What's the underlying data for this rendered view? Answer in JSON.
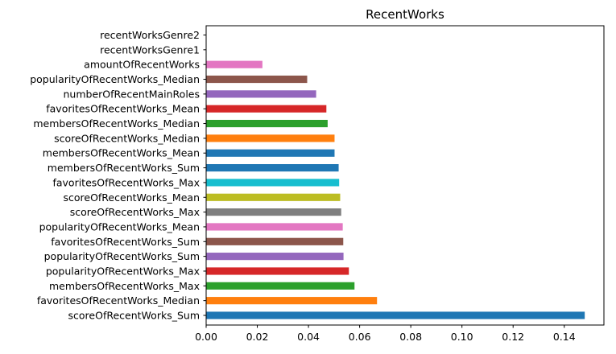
{
  "chart_data": {
    "type": "bar",
    "orientation": "horizontal",
    "title": "RecentWorks",
    "xlabel": "",
    "ylabel": "",
    "xlim": [
      0.0,
      0.1555
    ],
    "x_ticks": [
      "0.00",
      "0.02",
      "0.04",
      "0.06",
      "0.08",
      "0.10",
      "0.12",
      "0.14"
    ],
    "x_tick_values": [
      0.0,
      0.02,
      0.04,
      0.06,
      0.08,
      0.1,
      0.12,
      0.14
    ],
    "grid": false,
    "legend": "none",
    "categories": [
      "scoreOfRecentWorks_Sum",
      "favoritesOfRecentWorks_Median",
      "membersOfRecentWorks_Max",
      "popularityOfRecentWorks_Max",
      "popularityOfRecentWorks_Sum",
      "favoritesOfRecentWorks_Sum",
      "popularityOfRecentWorks_Mean",
      "scoreOfRecentWorks_Max",
      "scoreOfRecentWorks_Mean",
      "favoritesOfRecentWorks_Max",
      "membersOfRecentWorks_Sum",
      "membersOfRecentWorks_Mean",
      "scoreOfRecentWorks_Median",
      "membersOfRecentWorks_Median",
      "favoritesOfRecentWorks_Mean",
      "numberOfRecentMainRoles",
      "popularityOfRecentWorks_Median",
      "amountOfRecentWorks",
      "recentWorksGenre1",
      "recentWorksGenre2"
    ],
    "values": [
      0.148,
      0.0668,
      0.058,
      0.0558,
      0.0537,
      0.0536,
      0.0534,
      0.0528,
      0.0524,
      0.052,
      0.0518,
      0.0502,
      0.0502,
      0.0475,
      0.047,
      0.043,
      0.0395,
      0.022,
      0.0,
      0.0
    ],
    "colors": [
      "#1f77b4",
      "#ff7f0e",
      "#2ca02c",
      "#d62728",
      "#9467bd",
      "#8c564b",
      "#e377c2",
      "#7f7f7f",
      "#bcbd22",
      "#17becf",
      "#1f77b4",
      "#1f77b4",
      "#ff7f0e",
      "#2ca02c",
      "#d62728",
      "#9467bd",
      "#8c564b",
      "#e377c2",
      "#7f7f7f",
      "#bcbd22"
    ]
  }
}
